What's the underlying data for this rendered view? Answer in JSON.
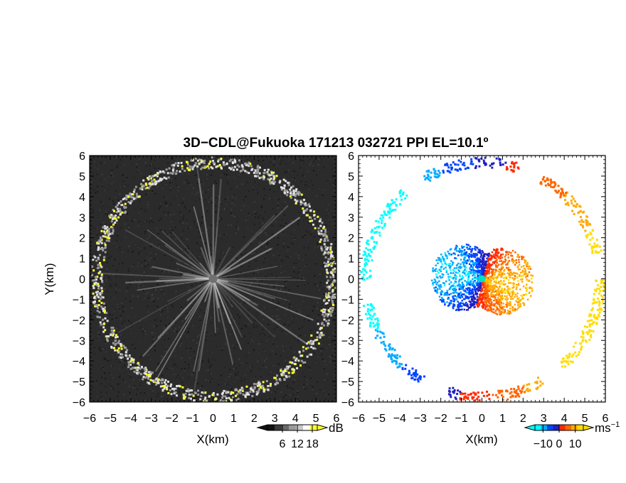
{
  "figure": {
    "title": "3D−CDL@Fukuoka 171213 032721 PPI EL=10.1º"
  },
  "chart_data": [
    {
      "type": "heatmap",
      "panel": "left",
      "quantity": "SNR",
      "xlabel": "X(km)",
      "ylabel": "Y(km)",
      "xlim": [
        -6,
        6
      ],
      "ylim": [
        -6,
        6
      ],
      "xticks": [
        "−6",
        "−5",
        "−4",
        "−3",
        "−2",
        "−1",
        "0",
        "1",
        "2",
        "3",
        "4",
        "5",
        "6"
      ],
      "yticks": [
        "6",
        "5",
        "4",
        "3",
        "2",
        "1",
        "0",
        "−1",
        "−2",
        "−3",
        "−4",
        "−5",
        "−6"
      ],
      "colorbar": {
        "unit": "dB",
        "ticks": [
          "6",
          "12",
          "18"
        ],
        "tick_values": [
          6,
          12,
          18
        ],
        "range": [
          0,
          20
        ],
        "colors": [
          "#111111",
          "#3a3a3a",
          "#6a6a6a",
          "#9a9a9a",
          "#c8c8c8",
          "#ffffff",
          "#ffff33"
        ]
      },
      "features": {
        "echo_ring_radius_km": 5.7,
        "center_radial_streaks": true,
        "background": "#2b2b2b"
      }
    },
    {
      "type": "heatmap",
      "panel": "right",
      "quantity": "Doppler velocity",
      "xlabel": "X(km)",
      "ylabel": "",
      "xlim": [
        -6,
        6
      ],
      "ylim": [
        -6,
        6
      ],
      "xticks": [
        "−6",
        "−5",
        "−4",
        "−3",
        "−2",
        "−1",
        "0",
        "1",
        "2",
        "3",
        "4",
        "5",
        "6"
      ],
      "yticks": [
        "6",
        "5",
        "4",
        "3",
        "2",
        "1",
        "0",
        "−1",
        "−2",
        "−3",
        "−4",
        "−5",
        "−6"
      ],
      "colorbar": {
        "unit": "ms",
        "unit_exp": "−1",
        "ticks": [
          "−10",
          "0",
          "10"
        ],
        "tick_values": [
          -10,
          0,
          10
        ],
        "range": [
          -15,
          15
        ],
        "colors": [
          "#00ffff",
          "#00aaff",
          "#0044ff",
          "#2020c0",
          "#ff2a00",
          "#ff6600",
          "#ffaa00",
          "#ffdd00"
        ]
      },
      "features": {
        "echo_ring_radius_km": 5.7,
        "inner_echo_radius_km": 2.5,
        "velocity_dipole": "approaching (blue) upper-left, receding (red/orange) lower-right"
      }
    }
  ]
}
